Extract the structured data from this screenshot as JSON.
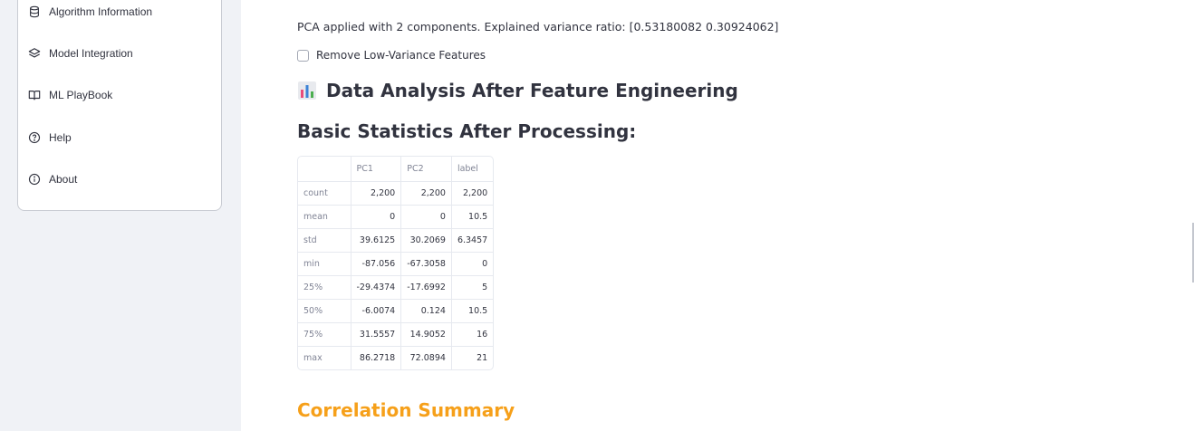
{
  "sidebar": {
    "items": [
      {
        "label": "Algorithm Information",
        "icon": "database-icon"
      },
      {
        "label": "Model Integration",
        "icon": "layers-icon"
      },
      {
        "label": "ML PlayBook",
        "icon": "book-icon"
      },
      {
        "label": "Help",
        "icon": "help-circle-icon"
      },
      {
        "label": "About",
        "icon": "info-circle-icon"
      }
    ]
  },
  "main": {
    "pca_text": "PCA applied with 2 components. Explained variance ratio: [0.53180082 0.30924062]",
    "checkbox_label": "Remove Low-Variance Features",
    "section_heading": "Data Analysis After Feature Engineering",
    "section_icon": "bar-chart-icon",
    "stats_heading": "Basic Statistics After Processing:",
    "table": {
      "columns": [
        "",
        "PC1",
        "PC2",
        "label"
      ],
      "rows": [
        {
          "index": "count",
          "values": [
            "2,200",
            "2,200",
            "2,200"
          ]
        },
        {
          "index": "mean",
          "values": [
            "0",
            "0",
            "10.5"
          ]
        },
        {
          "index": "std",
          "values": [
            "39.6125",
            "30.2069",
            "6.3457"
          ]
        },
        {
          "index": "min",
          "values": [
            "-87.056",
            "-67.3058",
            "0"
          ]
        },
        {
          "index": "25%",
          "values": [
            "-29.4374",
            "-17.6992",
            "5"
          ]
        },
        {
          "index": "50%",
          "values": [
            "-6.0074",
            "0.124",
            "10.5"
          ]
        },
        {
          "index": "75%",
          "values": [
            "31.5557",
            "14.9052",
            "16"
          ]
        },
        {
          "index": "max",
          "values": [
            "86.2718",
            "72.0894",
            "21"
          ]
        }
      ]
    },
    "correlation_heading": "Correlation Summary",
    "accent_color": "#f6a01a"
  }
}
